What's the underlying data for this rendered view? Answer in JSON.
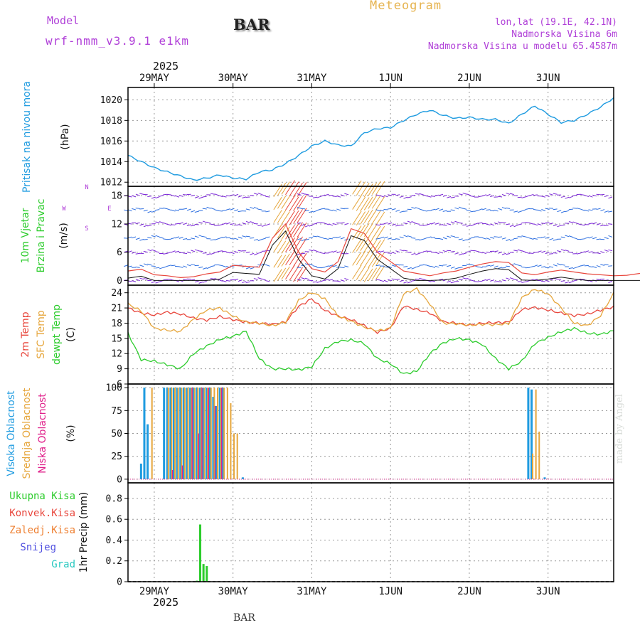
{
  "header": {
    "app_title": "Meteogram",
    "model_label": "Model",
    "model_name": "wrf-nmm_v3.9.1 e1km",
    "station": "BAR",
    "location": "lon,lat (19.1E, 42.1N)",
    "elevation": "Nadmorska Visina 6m",
    "model_elevation": "Nadmorska Visina u modelu 65.4587m",
    "footer_station": "BAR",
    "credit": "made by Angel",
    "year_top": "2025",
    "year_bottom": "2025"
  },
  "colors": {
    "pressure": "#1e9be0",
    "temp_2m": "#e8463c",
    "temp_sfc": "#e6a63c",
    "dewpoint": "#2ccc2c",
    "cloud_high": "#1e9be0",
    "cloud_mid": "#e6a63c",
    "cloud_low": "#e0208a",
    "precip_total": "#2ccc2c",
    "precip_conv": "#e8463c",
    "precip_freeze": "#ee7f30",
    "precip_snow": "#5050e0",
    "precip_hail": "#28c8c0",
    "header_purple": "#b040d8",
    "header_gold": "#e6b450"
  },
  "chart_data": [
    {
      "type": "line",
      "title": "",
      "ylabel_lines": [
        "Pritisak na nivou mora",
        "(hPa)"
      ],
      "ylim": [
        1011.6,
        1021.2
      ],
      "yticks": [
        1012,
        1014,
        1016,
        1018,
        1020
      ],
      "xlim_hours": [
        0,
        148
      ],
      "x_dates_top": [
        "29MAY",
        "30MAY",
        "31MAY",
        "1JUN",
        "2JUN",
        "3JUN"
      ],
      "x_dates_bottom": [
        "29MAY",
        "30MAY",
        "31MAY",
        "1JUN",
        "2JUN",
        "3JUN"
      ],
      "series": [
        {
          "values_hourly_sampled_every_4h": [
            1014.6,
            1014.0,
            1013.4,
            1013.0,
            1012.6,
            1012.2,
            1012.4,
            1012.7,
            1012.4,
            1012.3,
            1013.0,
            1013.2,
            1013.8,
            1014.6,
            1015.5,
            1016.0,
            1015.6,
            1015.5,
            1016.8,
            1017.2,
            1017.3,
            1018.0,
            1018.6,
            1019.0,
            1018.5,
            1018.2,
            1018.3,
            1018.1,
            1018.1,
            1017.7,
            1018.6,
            1019.4,
            1018.6,
            1017.8,
            1018.0,
            1018.6,
            1019.3,
            1020.2,
            1020.5,
            1020.0,
            1019.2,
            1018.8,
            1019.4,
            1020.0,
            1020.2,
            1019.8,
            1019.9,
            1019.5,
            1019.6,
            1020.1,
            1020.2,
            1019.9
          ]
        }
      ],
      "grid": true
    },
    {
      "type": "line",
      "title": "",
      "ylabel_lines": [
        "10m Vjetar",
        "Brzina i Pravac",
        "(m/s)"
      ],
      "compass_labels": [
        "N",
        "S",
        "W",
        "E"
      ],
      "ylim": [
        -1,
        20
      ],
      "yticks": [
        0,
        6,
        12,
        18
      ],
      "series": [
        {
          "name": "speed",
          "values_sampled_every_4h": [
            2.0,
            2.4,
            1.2,
            1.0,
            0.6,
            0.8,
            1.4,
            1.8,
            3.2,
            3.0,
            2.8,
            9.0,
            12.0,
            6.0,
            2.5,
            1.8,
            4.0,
            11.0,
            10.0,
            6.0,
            4.0,
            2.0,
            1.5,
            1.0,
            1.6,
            2.0,
            2.8,
            3.5,
            4.0,
            3.8,
            1.6,
            1.2,
            1.8,
            2.2,
            1.8,
            1.4,
            1.2,
            1.0,
            1.1,
            1.5,
            1.8,
            1.2,
            1.0,
            0.8,
            1.1,
            1.4,
            1.6,
            1.2,
            1.5,
            2.0,
            1.8,
            1.6
          ]
        }
      ],
      "grid": true
    },
    {
      "type": "line",
      "title": "",
      "ylabel_lines": [
        "2m Temp",
        "SFC Temp",
        "dewpt Temp",
        "(C)"
      ],
      "ylim": [
        6,
        25.5
      ],
      "yticks": [
        6,
        9,
        12,
        15,
        18,
        21,
        24
      ],
      "series": [
        {
          "name": "2m Temp",
          "values_sampled_every_4h": [
            21.0,
            20.0,
            19.6,
            20.2,
            19.8,
            19.0,
            18.6,
            19.3,
            18.7,
            18.2,
            18.0,
            17.8,
            18.2,
            21.3,
            22.8,
            20.5,
            19.4,
            18.7,
            17.5,
            16.2,
            17.0,
            21.4,
            20.7,
            20.0,
            18.3,
            18.0,
            17.6,
            18.0,
            18.1,
            18.2,
            20.7,
            21.1,
            20.6,
            20.0,
            19.5,
            19.8,
            20.6,
            21.2,
            20.7,
            20.1,
            19.6,
            19.5,
            20.6,
            21.1,
            20.9,
            20.3,
            20.2,
            20.4,
            21.0,
            21.3,
            21.5,
            21.8
          ]
        },
        {
          "name": "SFC Temp",
          "values_sampled_every_4h": [
            21.8,
            20.4,
            17.0,
            16.6,
            16.4,
            18.8,
            20.6,
            21.0,
            19.4,
            18.2,
            18.0,
            17.5,
            18.2,
            22.5,
            24.1,
            22.8,
            19.4,
            18.4,
            17.2,
            16.5,
            17.0,
            23.8,
            24.8,
            21.8,
            18.0,
            17.9,
            17.6,
            17.8,
            17.7,
            17.9,
            23.0,
            24.7,
            23.8,
            21.0,
            18.0,
            17.5,
            19.5,
            23.9,
            25.0,
            23.6,
            19.8,
            17.4,
            19.7,
            23.8,
            24.8,
            22.2,
            18.4,
            17.5,
            18.0,
            23.5,
            25.0,
            24.6
          ]
        },
        {
          "name": "dewpt Temp",
          "values_sampled_every_4h": [
            16.0,
            10.8,
            10.5,
            9.8,
            9.0,
            12.0,
            13.5,
            14.8,
            15.4,
            16.4,
            11.0,
            9.0,
            9.0,
            8.8,
            9.4,
            13.0,
            14.4,
            14.7,
            14.0,
            11.0,
            10.0,
            8.0,
            8.5,
            12.0,
            14.1,
            15.0,
            14.7,
            13.8,
            11.0,
            9.0,
            10.5,
            14.0,
            15.2,
            16.3,
            17.0,
            16.0,
            15.8,
            16.5,
            17.0,
            16.8,
            16.3,
            16.0,
            15.5,
            16.0,
            16.1,
            15.2,
            14.0,
            14.6,
            15.0,
            14.4,
            13.5,
            13.2
          ]
        }
      ],
      "grid": true
    },
    {
      "type": "bar",
      "title": "",
      "ylabel_lines": [
        "Visoka Oblacnost",
        "Srednja Oblacnost",
        "Niska Oblacnost",
        "(%)"
      ],
      "ylim": [
        -4,
        104
      ],
      "yticks": [
        0,
        25,
        50,
        75,
        100
      ],
      "series": [
        {
          "name": "Visoka Oblacnost",
          "bars": [
            [
              4,
              17
            ],
            [
              5,
              100
            ],
            [
              6,
              60
            ],
            [
              11,
              100
            ],
            [
              12,
              100
            ],
            [
              13,
              100
            ],
            [
              14,
              100
            ],
            [
              15,
              100
            ],
            [
              16,
              100
            ],
            [
              17,
              100
            ],
            [
              18,
              100
            ],
            [
              19,
              100
            ],
            [
              20,
              100
            ],
            [
              21,
              100
            ],
            [
              22,
              100
            ],
            [
              23,
              100
            ],
            [
              24,
              100
            ],
            [
              25,
              100
            ],
            [
              26,
              90
            ],
            [
              27,
              80
            ],
            [
              28,
              100
            ],
            [
              29,
              100
            ],
            [
              35,
              2
            ],
            [
              122,
              100
            ],
            [
              123,
              98
            ],
            [
              127,
              2
            ]
          ]
        },
        {
          "name": "Srednja Oblacnost",
          "bars": [
            [
              7,
              100
            ],
            [
              12,
              100
            ],
            [
              13,
              100
            ],
            [
              14,
              100
            ],
            [
              15,
              100
            ],
            [
              16,
              100
            ],
            [
              17,
              100
            ],
            [
              18,
              100
            ],
            [
              19,
              100
            ],
            [
              20,
              100
            ],
            [
              21,
              100
            ],
            [
              22,
              100
            ],
            [
              23,
              100
            ],
            [
              24,
              100
            ],
            [
              25,
              100
            ],
            [
              26,
              100
            ],
            [
              27,
              100
            ],
            [
              28,
              100
            ],
            [
              29,
              100
            ],
            [
              30,
              100
            ],
            [
              31,
              83
            ],
            [
              32,
              50
            ],
            [
              33,
              50
            ],
            [
              123,
              28
            ],
            [
              124,
              98
            ],
            [
              125,
              52
            ]
          ]
        },
        {
          "name": "Niska Oblacnost",
          "bars": [
            [
              13,
              10
            ],
            [
              16,
              15
            ],
            [
              19,
              100
            ],
            [
              21,
              50
            ],
            [
              22,
              100
            ],
            [
              24,
              100
            ],
            [
              26,
              80
            ],
            [
              28,
              100
            ]
          ]
        }
      ],
      "grid": true
    },
    {
      "type": "bar",
      "title": "",
      "ylabel_lines": [
        "1hr Precip (mm)"
      ],
      "legend": [
        "Ukupna Kisa",
        "Konvek.Kisa",
        "Zaledj.Kisa",
        "Snijeg",
        "Grad"
      ],
      "ylim": [
        0,
        0.95
      ],
      "yticks": [
        0,
        0.2,
        0.4,
        0.6,
        0.8
      ],
      "series": [
        {
          "name": "Ukupna Kisa",
          "bars": [
            [
              21,
              0.01
            ],
            [
              22,
              0.55
            ],
            [
              23,
              0.17
            ],
            [
              24,
              0.15
            ]
          ]
        }
      ],
      "grid": true
    }
  ]
}
